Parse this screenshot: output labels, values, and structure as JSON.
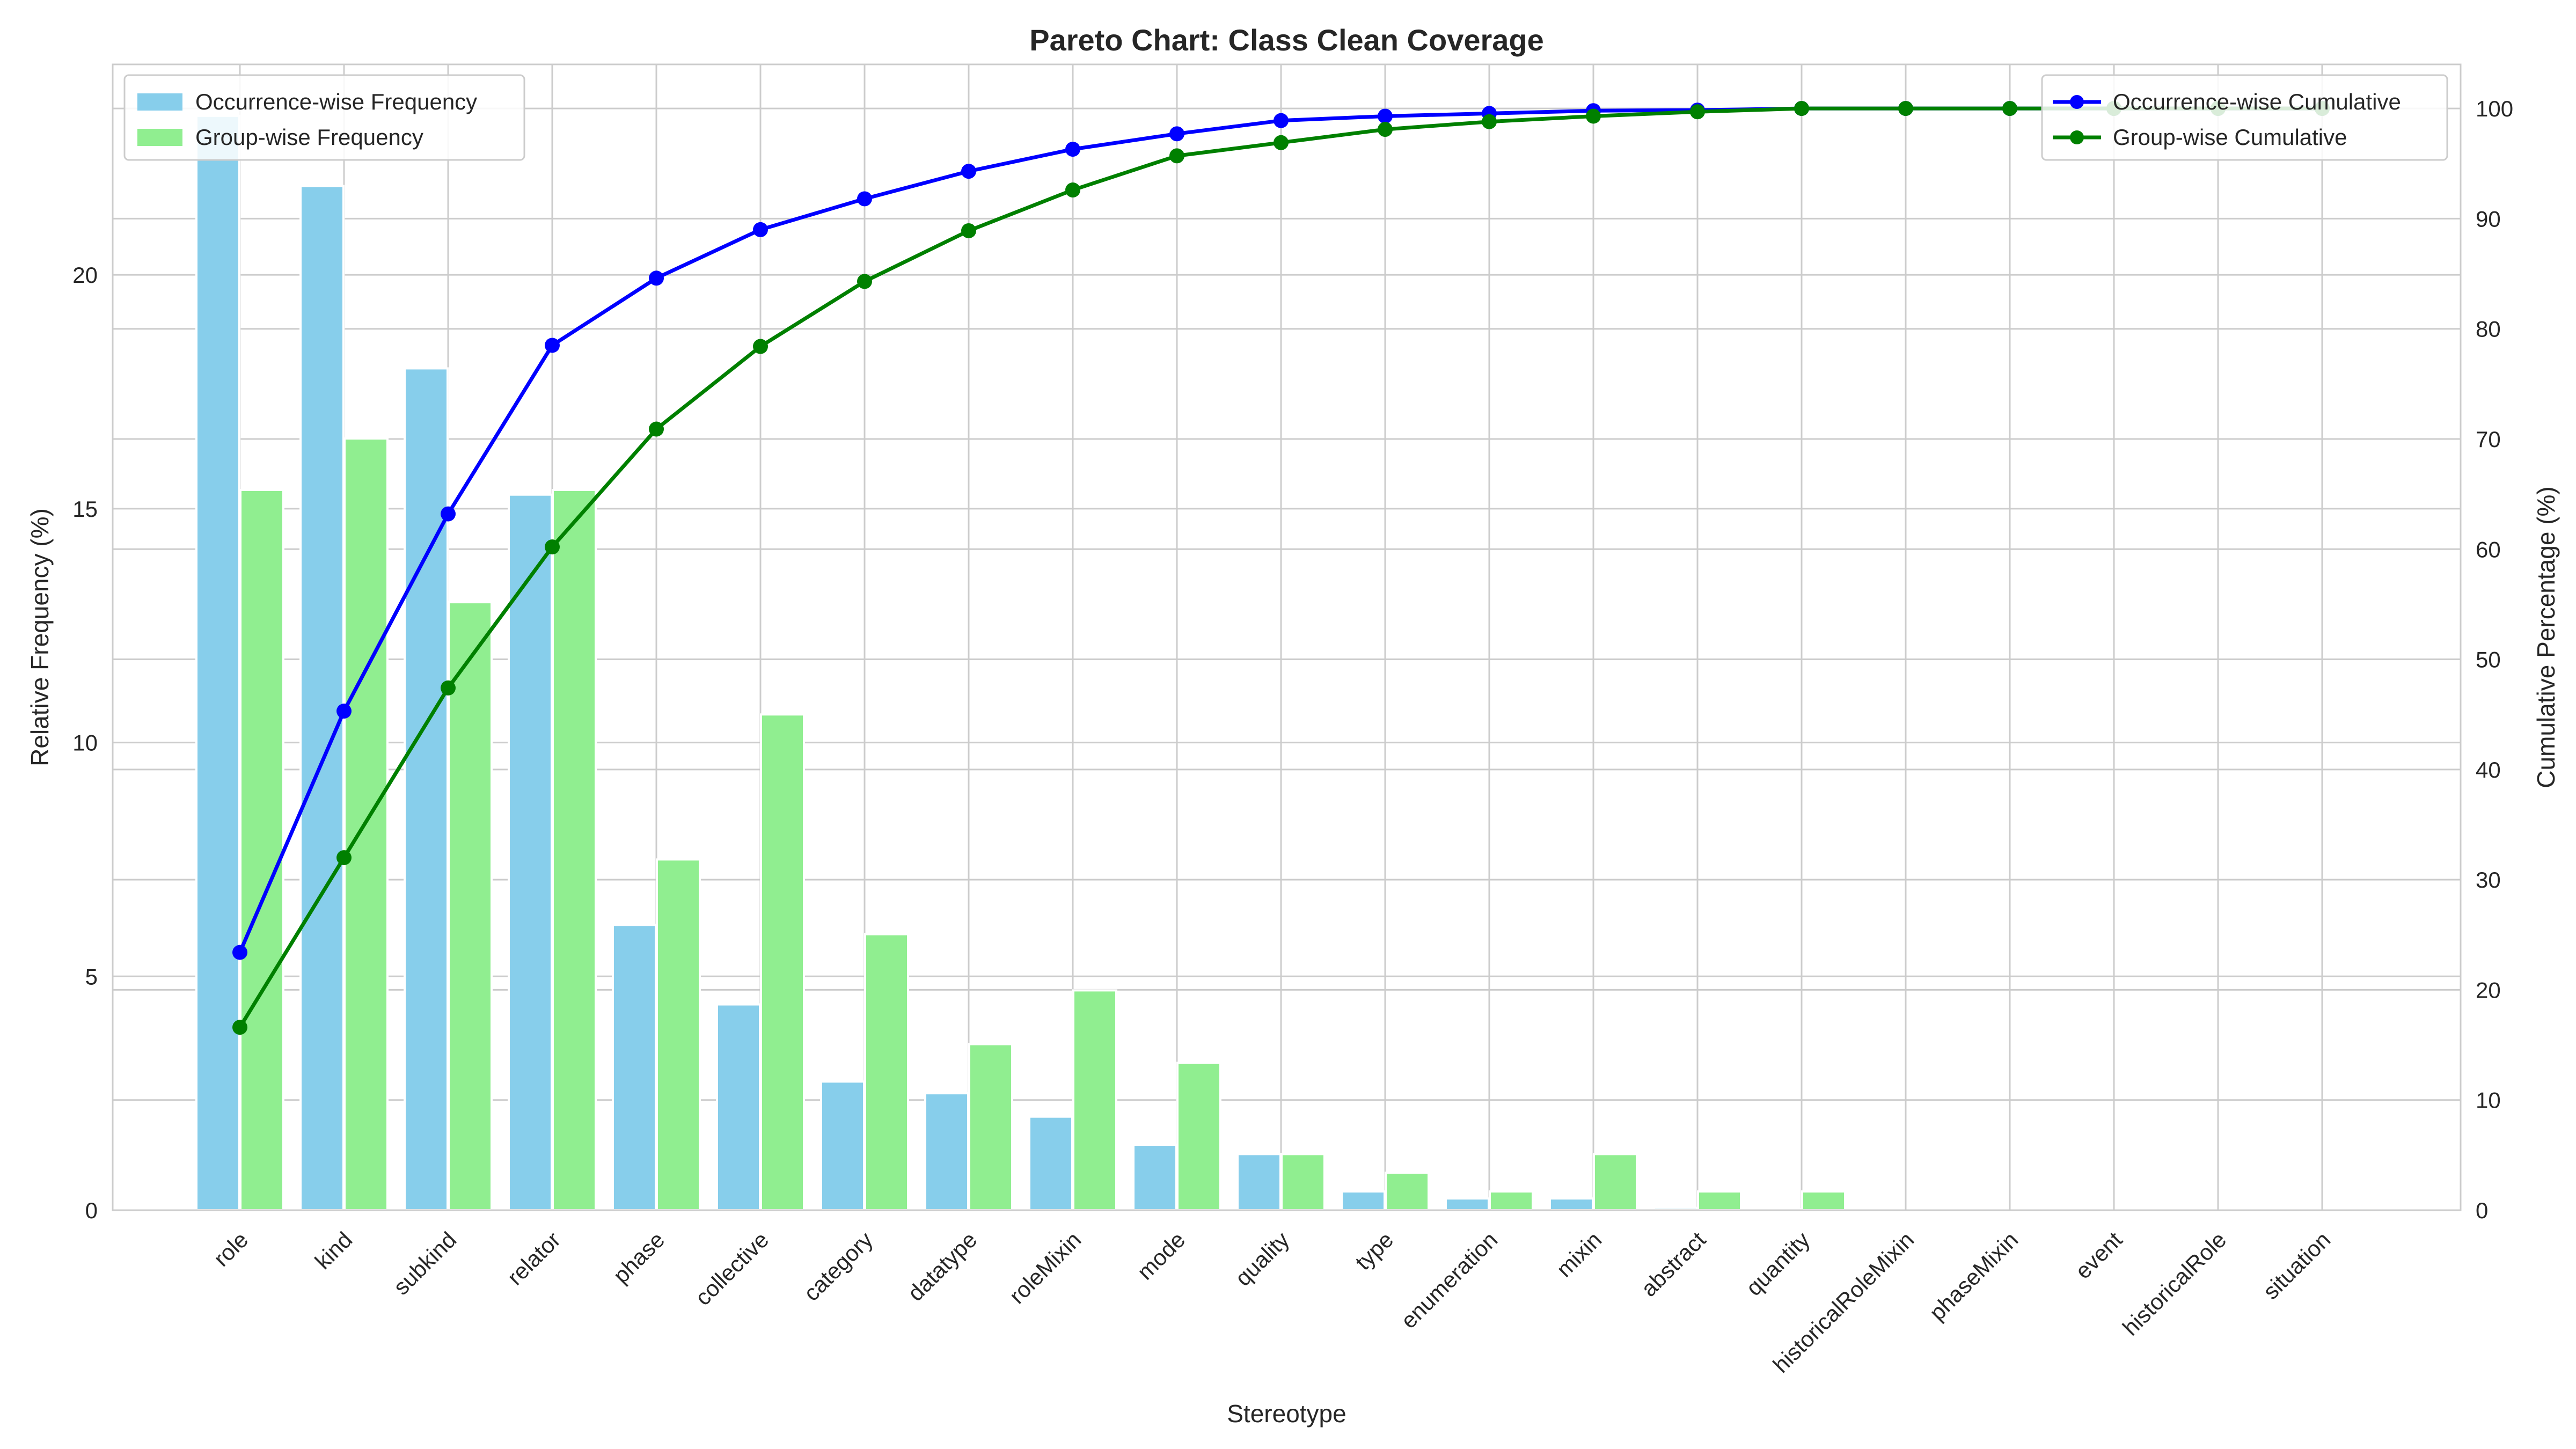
{
  "chart_data": {
    "type": "bar",
    "title": "Pareto Chart: Class Clean Coverage",
    "xlabel": "Stereotype",
    "ylabel": "Relative Frequency (%)",
    "ylabel_right": "Cumulative Percentage (%)",
    "ylim": [
      0,
      24.5
    ],
    "ylim_right": [
      0,
      104
    ],
    "yticks": [
      "0",
      "5",
      "10",
      "15",
      "20"
    ],
    "yticks_right": [
      "0",
      "10",
      "20",
      "30",
      "40",
      "50",
      "60",
      "70",
      "80",
      "90",
      "100"
    ],
    "grid": true,
    "categories": [
      "role",
      "kind",
      "subkind",
      "relator",
      "phase",
      "collective",
      "category",
      "datatype",
      "roleMixin",
      "mode",
      "quality",
      "type",
      "enumeration",
      "mixin",
      "abstract",
      "quantity",
      "historicalRoleMixin",
      "phaseMixin",
      "event",
      "historicalRole",
      "situation"
    ],
    "bar_series": [
      {
        "name": "Occurrence-wise Frequency",
        "color": "#87ceeb",
        "values": [
          23.4,
          21.9,
          18.0,
          15.3,
          6.1,
          4.4,
          2.75,
          2.5,
          2.0,
          1.4,
          1.2,
          0.4,
          0.25,
          0.25,
          0.05,
          0.02,
          0,
          0,
          0,
          0,
          0
        ]
      },
      {
        "name": "Group-wise Frequency",
        "color": "#90ee90",
        "values": [
          15.4,
          16.5,
          13.0,
          15.4,
          7.5,
          10.6,
          5.9,
          3.55,
          4.7,
          3.15,
          1.2,
          0.8,
          0.4,
          1.2,
          0.4,
          0.4,
          0,
          0,
          0,
          0,
          0
        ]
      }
    ],
    "line_series": [
      {
        "name": "Occurrence-wise Cumulative",
        "color": "#0000ff",
        "values": [
          23.4,
          45.3,
          63.2,
          78.5,
          84.6,
          89.0,
          91.8,
          94.3,
          96.3,
          97.7,
          98.9,
          99.3,
          99.55,
          99.8,
          99.85,
          100,
          100,
          100,
          100,
          100,
          100
        ]
      },
      {
        "name": "Group-wise Cumulative",
        "color": "#008000",
        "values": [
          16.6,
          32.0,
          47.4,
          60.2,
          70.9,
          78.4,
          84.3,
          88.9,
          92.6,
          95.7,
          96.9,
          98.1,
          98.8,
          99.3,
          99.7,
          100,
          100,
          100,
          100,
          100,
          100
        ]
      }
    ],
    "legend_left": {
      "placement": "top-left",
      "entries": [
        "Occurrence-wise Frequency",
        "Group-wise Frequency"
      ]
    },
    "legend_right": {
      "placement": "top-right",
      "entries": [
        "Occurrence-wise Cumulative",
        "Group-wise Cumulative"
      ]
    }
  }
}
